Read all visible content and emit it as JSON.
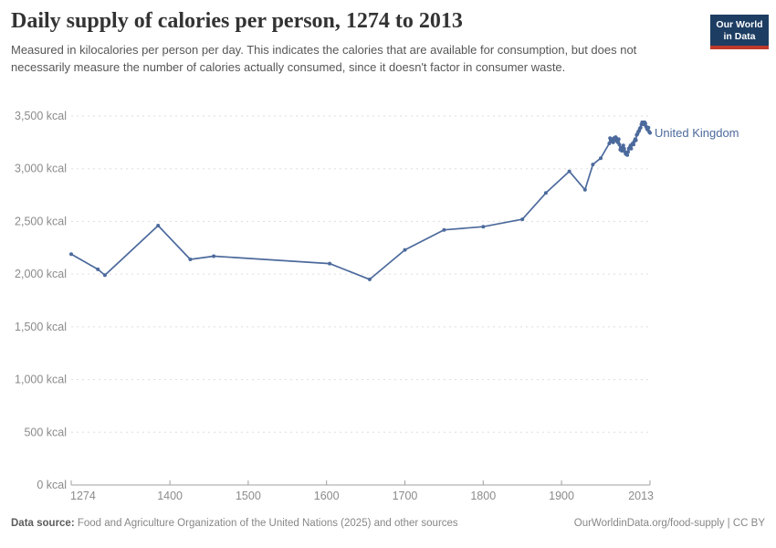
{
  "header": {
    "title": "Daily supply of calories per person, 1274 to 2013",
    "subtitle": "Measured in kilocalories per person per day. This indicates the calories that are available for consumption, but does not necessarily measure the number of calories actually consumed, since it doesn't factor in consumer waste.",
    "logo_line1": "Our World",
    "logo_line2": "in Data"
  },
  "chart_data": {
    "type": "line",
    "title": "Daily supply of calories per person, 1274 to 2013",
    "unit_suffix": " kcal",
    "xlim": [
      1274,
      2013
    ],
    "ylim": [
      0,
      3500
    ],
    "x_ticks": [
      1274,
      1400,
      1500,
      1600,
      1700,
      1800,
      1900,
      2013
    ],
    "y_ticks": [
      0,
      500,
      1000,
      1500,
      2000,
      2500,
      3000,
      3500
    ],
    "grid": "horizontal-dashed",
    "legend_position": "line-end-label",
    "colors": {
      "line": "#4c6a9c",
      "grid": "#dddddd",
      "axis": "#a0a0a0",
      "tick_label": "#8b8b8b"
    },
    "series": [
      {
        "name": "United Kingdom",
        "points": [
          [
            1274,
            2190
          ],
          [
            1308,
            2045
          ],
          [
            1317,
            1990
          ],
          [
            1385,
            2460
          ],
          [
            1426,
            2140
          ],
          [
            1456,
            2170
          ],
          [
            1604,
            2100
          ],
          [
            1655,
            1950
          ],
          [
            1700,
            2230
          ],
          [
            1750,
            2420
          ],
          [
            1800,
            2450
          ],
          [
            1850,
            2520
          ],
          [
            1880,
            2770
          ],
          [
            1910,
            2975
          ],
          [
            1930,
            2800
          ],
          [
            1940,
            3040
          ],
          [
            1950,
            3100
          ],
          [
            1961,
            3240
          ],
          [
            1962,
            3290
          ],
          [
            1963,
            3280
          ],
          [
            1964,
            3260
          ],
          [
            1965,
            3280
          ],
          [
            1966,
            3250
          ],
          [
            1967,
            3290
          ],
          [
            1968,
            3270
          ],
          [
            1969,
            3300
          ],
          [
            1970,
            3290
          ],
          [
            1971,
            3260
          ],
          [
            1972,
            3250
          ],
          [
            1973,
            3280
          ],
          [
            1974,
            3230
          ],
          [
            1975,
            3180
          ],
          [
            1976,
            3200
          ],
          [
            1977,
            3170
          ],
          [
            1978,
            3200
          ],
          [
            1979,
            3220
          ],
          [
            1980,
            3190
          ],
          [
            1981,
            3160
          ],
          [
            1982,
            3140
          ],
          [
            1983,
            3150
          ],
          [
            1984,
            3130
          ],
          [
            1985,
            3160
          ],
          [
            1986,
            3190
          ],
          [
            1987,
            3200
          ],
          [
            1988,
            3220
          ],
          [
            1989,
            3190
          ],
          [
            1990,
            3230
          ],
          [
            1991,
            3240
          ],
          [
            1992,
            3230
          ],
          [
            1993,
            3260
          ],
          [
            1994,
            3280
          ],
          [
            1995,
            3270
          ],
          [
            1996,
            3320
          ],
          [
            1997,
            3330
          ],
          [
            1998,
            3350
          ],
          [
            1999,
            3360
          ],
          [
            2000,
            3380
          ],
          [
            2001,
            3390
          ],
          [
            2002,
            3420
          ],
          [
            2003,
            3440
          ],
          [
            2004,
            3430
          ],
          [
            2005,
            3420
          ],
          [
            2006,
            3440
          ],
          [
            2007,
            3430
          ],
          [
            2008,
            3400
          ],
          [
            2009,
            3380
          ],
          [
            2010,
            3370
          ],
          [
            2011,
            3390
          ],
          [
            2012,
            3350
          ],
          [
            2013,
            3340
          ]
        ]
      }
    ]
  },
  "footer": {
    "data_source_label": "Data source:",
    "data_source_text": " Food and Agriculture Organization of the United Nations (2025) and other sources",
    "link_text": "OurWorldinData.org/food-supply | CC BY"
  }
}
